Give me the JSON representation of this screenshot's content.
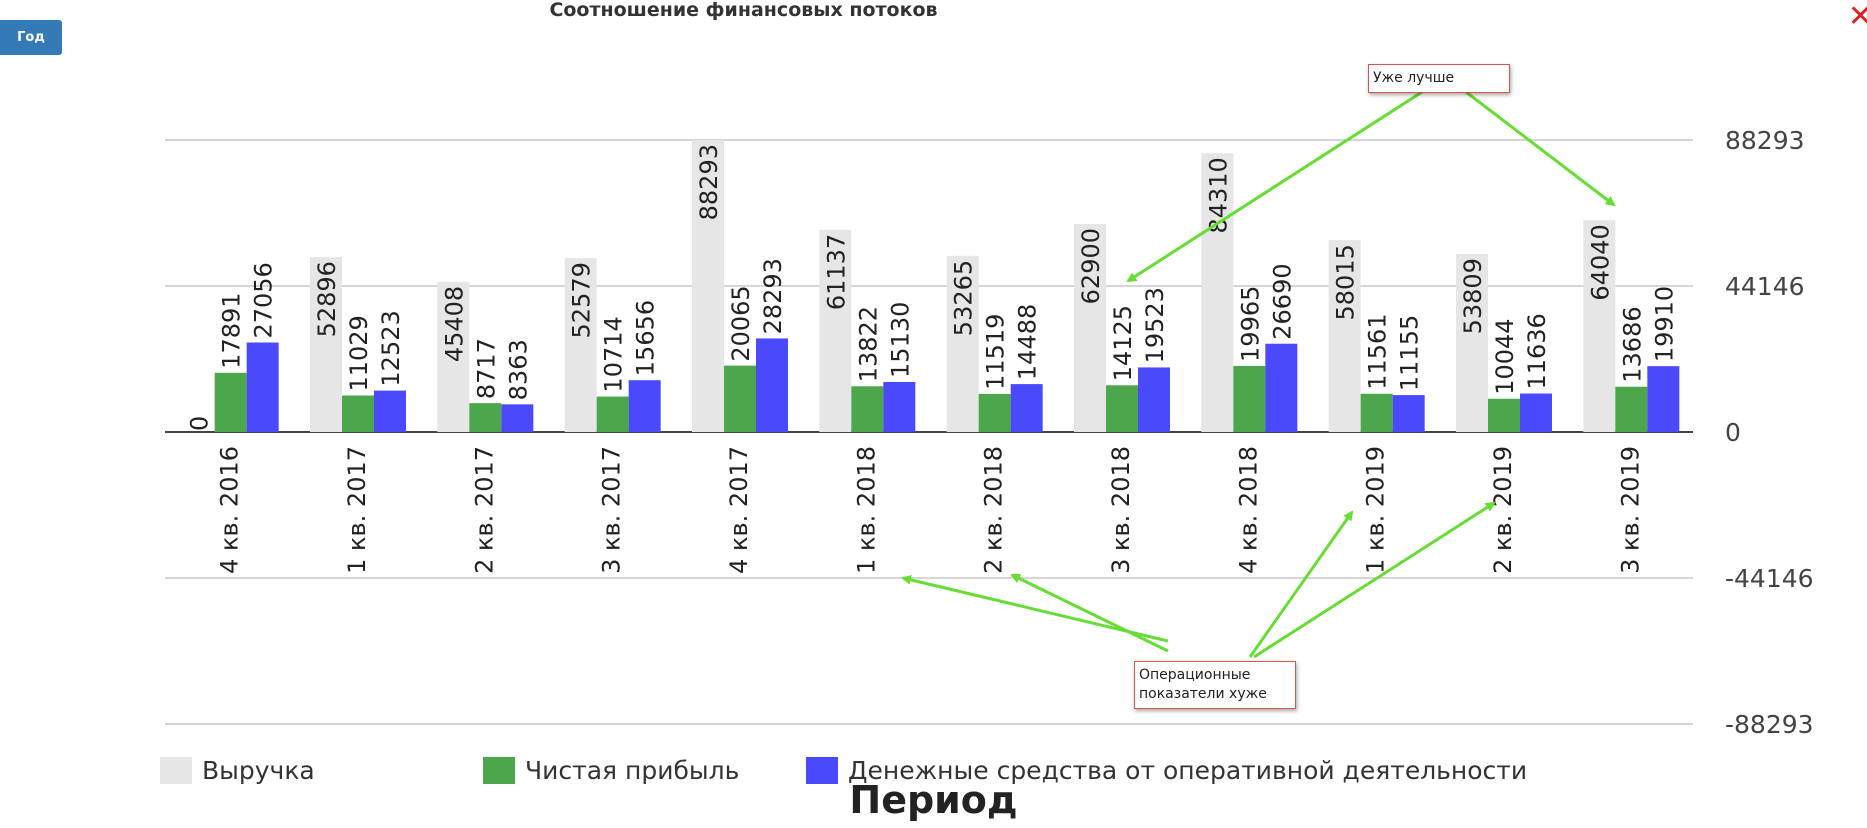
{
  "controls": {
    "year_button": "Год",
    "close_glyph": "✕"
  },
  "colors": {
    "revenue": "#e6e6e6",
    "profit": "#4ca64c",
    "cash": "#4a4afc",
    "arrow": "#66dd33",
    "note_border": "#d9534f"
  },
  "annotations": {
    "better": "Уже лучше",
    "worse_line1": "Операционные",
    "worse_line2": "показатели хуже"
  },
  "chart_data": {
    "type": "bar",
    "title": "Соотношение финансовых потоков",
    "xlabel": "Период",
    "ylabel": "",
    "ylim": [
      -88293,
      88293
    ],
    "yticks": [
      "88293",
      "44146",
      "0",
      "-44146",
      "-88293"
    ],
    "y_axis_side": "right",
    "grid": true,
    "legend_position": "bottom",
    "categories": [
      "4 кв. 2016",
      "1 кв. 2017",
      "2 кв. 2017",
      "3 кв. 2017",
      "4 кв. 2017",
      "1 кв. 2018",
      "2 кв. 2018",
      "3 кв. 2018",
      "4 кв. 2018",
      "1 кв. 2019",
      "2 кв. 2019",
      "3 кв. 2019"
    ],
    "series": [
      {
        "name": "Выручка",
        "values": [
          0,
          52896,
          45408,
          52579,
          88293,
          61137,
          53265,
          62900,
          84310,
          58015,
          53809,
          64040
        ]
      },
      {
        "name": "Чистая прибыль",
        "values": [
          17891,
          11029,
          8717,
          10714,
          20065,
          13822,
          11519,
          14125,
          19965,
          11561,
          10044,
          13686
        ]
      },
      {
        "name": "Денежные средства от оперативной деятельности",
        "values": [
          27056,
          12523,
          8363,
          15656,
          28293,
          15130,
          14488,
          19523,
          26690,
          11155,
          11636,
          19910
        ]
      }
    ]
  }
}
